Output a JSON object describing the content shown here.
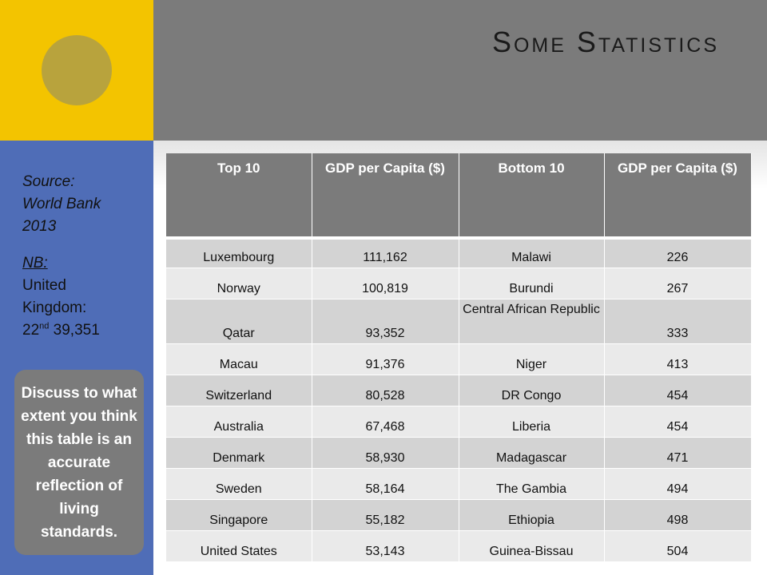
{
  "title": "Some Statistics",
  "source": {
    "line1": "Source:",
    "line2": "World Bank",
    "line3": "2013",
    "nb_label": "NB:",
    "nb_line1": "United",
    "nb_line2": "Kingdom:",
    "nb_rank": "22",
    "nb_rank_suffix": "nd",
    "nb_value": " 39,351"
  },
  "discuss": "Discuss to what extent you think this table is an accurate reflection of living standards.",
  "colors": {
    "yellow": "#f3c400",
    "gray": "#7b7b7b",
    "blue": "#4f6db7",
    "circle": "#b8a33d"
  },
  "table": {
    "headers": [
      "Top 10",
      "GDP per Capita ($)",
      "Bottom 10",
      "GDP per Capita ($)"
    ],
    "rows": [
      [
        "Luxembourg",
        "111,162",
        "Malawi",
        "226"
      ],
      [
        "Norway",
        "100,819",
        "Burundi",
        "267"
      ],
      [
        "Qatar",
        "93,352",
        "Central African Republic",
        "333"
      ],
      [
        "Macau",
        "91,376",
        "Niger",
        "413"
      ],
      [
        "Switzerland",
        "80,528",
        "DR Congo",
        "454"
      ],
      [
        "Australia",
        "67,468",
        "Liberia",
        "454"
      ],
      [
        "Denmark",
        "58,930",
        "Madagascar",
        "471"
      ],
      [
        "Sweden",
        "58,164",
        "The Gambia",
        "494"
      ],
      [
        "Singapore",
        "55,182",
        "Ethiopia",
        "498"
      ],
      [
        "United States",
        "53,143",
        "Guinea-Bissau",
        "504"
      ]
    ]
  }
}
